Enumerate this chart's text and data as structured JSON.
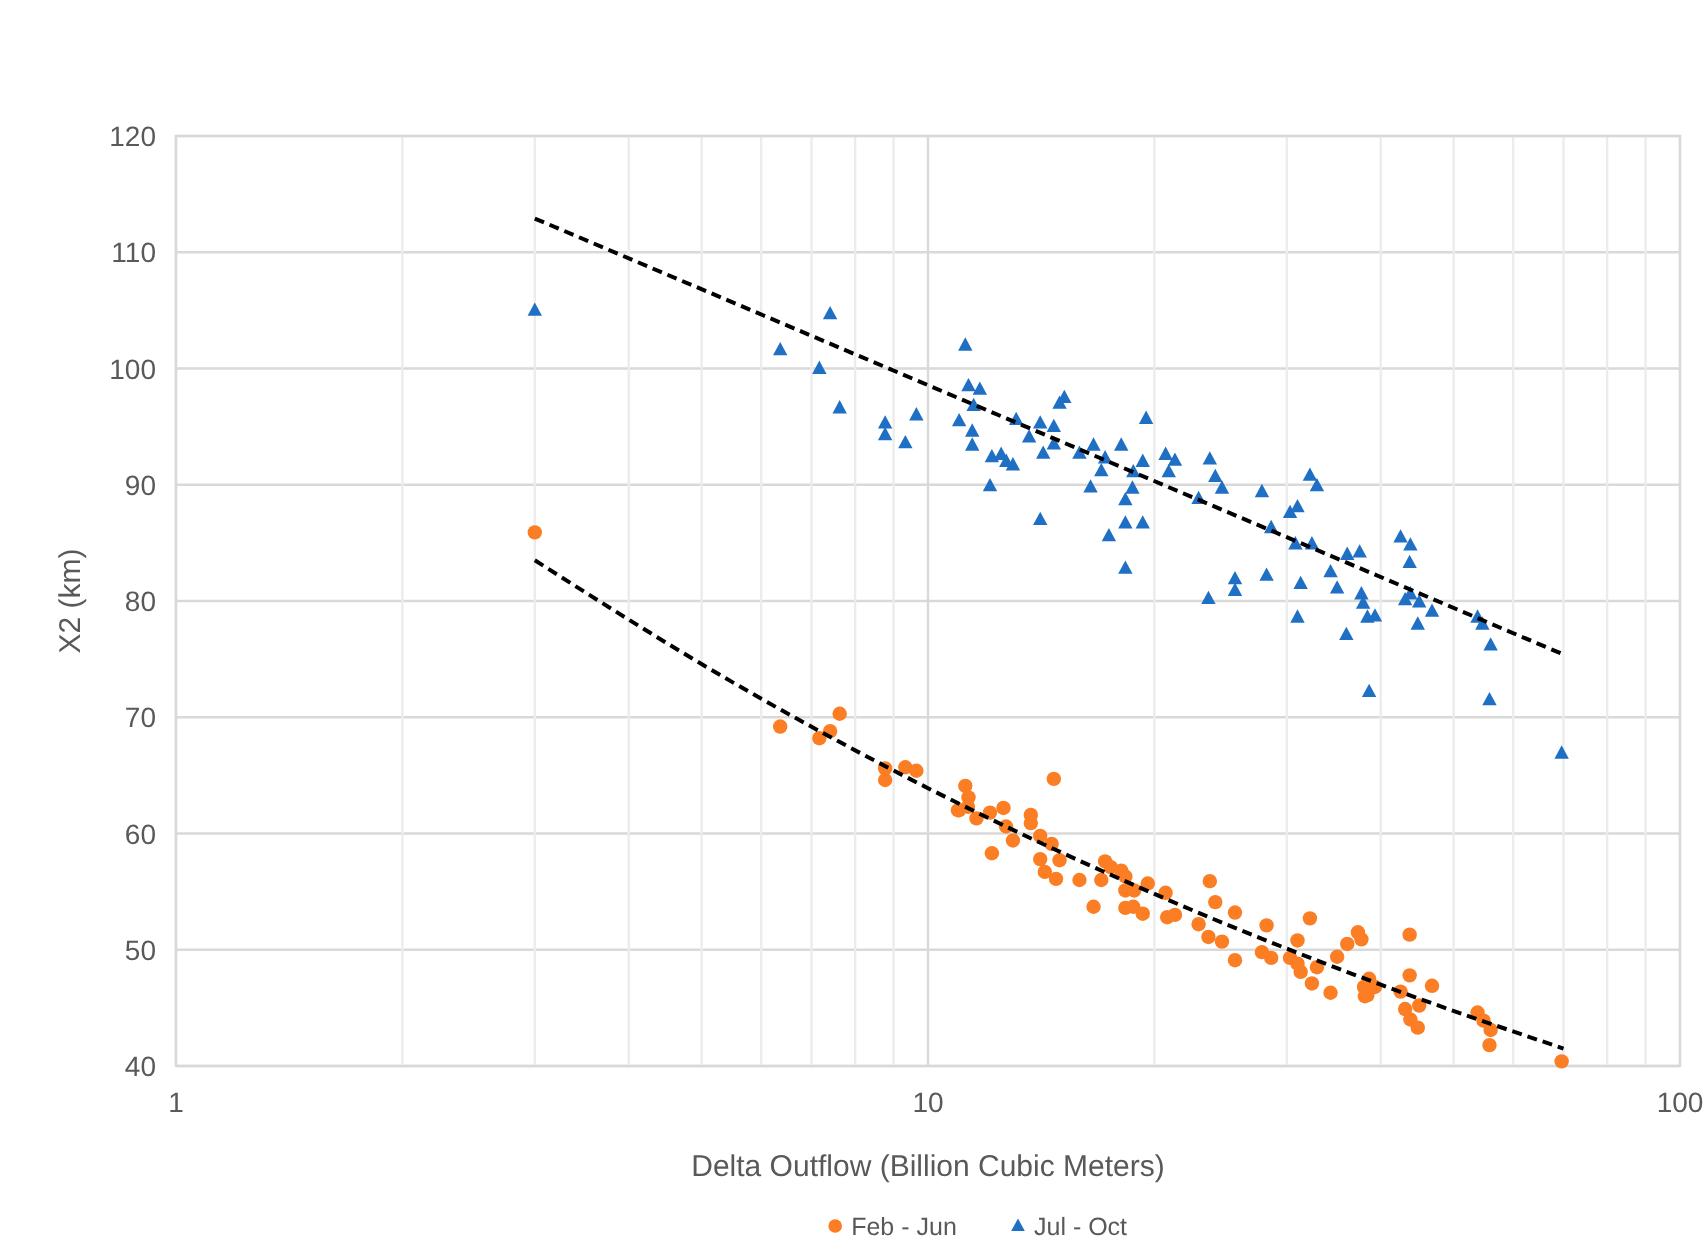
{
  "chart_data": {
    "type": "scatter",
    "xlabel": "Delta Outflow (Billion Cubic Meters)",
    "ylabel": "X2 (km)",
    "log": "x",
    "xlim": [
      1,
      100
    ],
    "xticks": [
      1,
      {
        "value": 2,
        "label": null
      },
      {
        "value": 3,
        "label": null
      },
      {
        "value": 4,
        "label": null
      },
      {
        "value": 5,
        "label": null
      },
      {
        "value": 6,
        "label": null
      },
      {
        "value": 7,
        "label": null
      },
      {
        "value": 8,
        "label": null
      },
      {
        "value": 9,
        "label": null
      },
      10,
      {
        "value": 20,
        "label": null
      },
      {
        "value": 30,
        "label": null
      },
      {
        "value": 40,
        "label": null
      },
      {
        "value": 50,
        "label": null
      },
      {
        "value": 60,
        "label": null
      },
      {
        "value": 70,
        "label": null
      },
      {
        "value": 80,
        "label": null
      },
      {
        "value": 90,
        "label": null
      },
      100
    ],
    "ylim": [
      40,
      120
    ],
    "yticks": [
      40,
      50,
      60,
      70,
      80,
      90,
      100,
      110,
      120
    ],
    "grid": true,
    "legend": "bottom",
    "series": [
      {
        "name": "Feb - Jun",
        "marker": "circle",
        "color": "#fb7d24",
        "x": [
          3,
          6.36,
          7.17,
          7.41,
          7.63,
          8.77,
          8.77,
          9.33,
          9.65,
          11.0,
          11.21,
          11.32,
          11.3,
          10.96,
          11.6,
          12.16,
          12.09,
          12.6,
          12.7,
          12.97,
          13.7,
          13.7,
          14.7,
          14.1,
          14.6,
          14.1,
          14.96,
          14.3,
          14.8,
          15.9,
          16.6,
          17.2,
          17.5,
          17.0,
          18.07,
          18.3,
          18.3,
          18.3,
          18.75,
          19.3,
          19.6,
          18.8,
          20.7,
          20.8,
          21.3,
          22.9,
          23.7,
          24.1,
          23.6,
          24.6,
          25.6,
          25.6,
          28.2,
          27.8,
          28.6,
          30.3,
          31.0,
          31.0,
          31.3,
          32.2,
          32.9,
          32.4,
          34.3,
          35.0,
          36.1,
          37.3,
          37.7,
          38.6,
          38.0,
          38.4,
          38.1,
          39.3,
          43.7,
          43.7,
          42.5,
          43.1,
          43.8,
          44.8,
          45.0,
          46.8,
          53.8,
          54.8,
          56.0,
          55.8,
          69.6
        ],
        "values": [
          85.9,
          69.2,
          68.2,
          68.8,
          70.3,
          65.6,
          64.6,
          65.7,
          65.4,
          62.0,
          64.1,
          63.1,
          62.3,
          62.0,
          61.3,
          58.3,
          61.8,
          62.2,
          60.6,
          59.4,
          61.6,
          60.9,
          64.7,
          59.8,
          59.1,
          57.8,
          57.7,
          56.7,
          56.1,
          56.0,
          53.7,
          57.6,
          57.1,
          56.0,
          56.8,
          56.3,
          55.1,
          53.6,
          53.7,
          53.1,
          55.7,
          55.1,
          54.9,
          52.8,
          53.0,
          52.2,
          55.9,
          54.1,
          51.1,
          50.7,
          53.2,
          49.1,
          52.1,
          49.8,
          49.3,
          49.3,
          50.8,
          48.8,
          48.1,
          52.7,
          48.5,
          47.1,
          46.3,
          49.4,
          50.5,
          51.5,
          50.9,
          47.5,
          46.8,
          46.1,
          46.0,
          46.8,
          51.3,
          47.8,
          46.4,
          44.9,
          44.0,
          43.3,
          45.2,
          46.9,
          44.6,
          43.9,
          43.1,
          41.8,
          40.4
        ]
      },
      {
        "name": "Jul - Oct",
        "marker": "triangle",
        "color": "#1f6fc5",
        "x": [
          3,
          6.36,
          7.41,
          7.17,
          7.63,
          8.77,
          8.77,
          9.33,
          9.65,
          11.21,
          11.32,
          11.72,
          11.5,
          11.0,
          11.45,
          11.45,
          12.09,
          12.16,
          12.51,
          12.71,
          12.97,
          13.1,
          13.63,
          14.1,
          14.7,
          14.7,
          14.23,
          14.1,
          14.96,
          15.18,
          15.9,
          16.6,
          16.45,
          17.2,
          17.0,
          18.07,
          17.4,
          18.3,
          18.3,
          18.3,
          18.75,
          18.7,
          19.3,
          19.3,
          19.5,
          20.7,
          21.3,
          20.9,
          22.9,
          23.7,
          24.1,
          24.6,
          23.6,
          25.6,
          25.6,
          27.8,
          28.6,
          28.2,
          30.3,
          31.0,
          32.2,
          32.9,
          30.8,
          32.4,
          31.3,
          31.0,
          34.3,
          35.0,
          36.1,
          37.5,
          36.0,
          37.7,
          37.9,
          38.4,
          39.3,
          38.6,
          42.5,
          43.8,
          43.7,
          43.8,
          43.1,
          45.0,
          44.8,
          46.8,
          53.8,
          54.6,
          56.0,
          55.8,
          69.6
        ],
        "values": [
          105.0,
          101.6,
          104.7,
          100.0,
          96.6,
          95.3,
          94.3,
          93.6,
          96.0,
          102.0,
          98.5,
          98.2,
          96.8,
          95.5,
          94.6,
          93.4,
          89.9,
          92.4,
          92.6,
          92.0,
          91.7,
          95.6,
          94.1,
          95.3,
          95.0,
          93.5,
          92.7,
          87.0,
          97.0,
          97.5,
          92.7,
          93.4,
          89.8,
          92.3,
          91.2,
          93.4,
          85.6,
          88.7,
          86.7,
          82.8,
          91.1,
          89.7,
          92.0,
          86.7,
          95.7,
          92.6,
          92.1,
          91.1,
          88.8,
          92.2,
          90.7,
          89.7,
          80.2,
          81.9,
          80.9,
          89.4,
          86.3,
          82.2,
          87.6,
          88.1,
          90.8,
          89.9,
          84.9,
          84.9,
          81.5,
          78.6,
          82.5,
          81.1,
          84.0,
          84.2,
          77.1,
          80.6,
          79.8,
          78.6,
          78.7,
          72.2,
          85.5,
          84.8,
          83.3,
          80.6,
          80.1,
          79.9,
          78.0,
          79.1,
          78.6,
          78.0,
          76.2,
          71.5,
          66.9
        ]
      },
      {
        "type": "line",
        "marker": "none",
        "line_style": "dashed",
        "color": "#000000",
        "x": [
          3,
          70
        ],
        "values": [
          112.9,
          75.4
        ]
      },
      {
        "type": "line",
        "marker": "none",
        "line_style": "dashed",
        "color": "#000000",
        "x": [
          3,
          5.5,
          10,
          20,
          40,
          70
        ],
        "values": [
          83.5,
          73.0,
          63.9,
          54.8,
          47.0,
          41.5
        ]
      }
    ]
  }
}
